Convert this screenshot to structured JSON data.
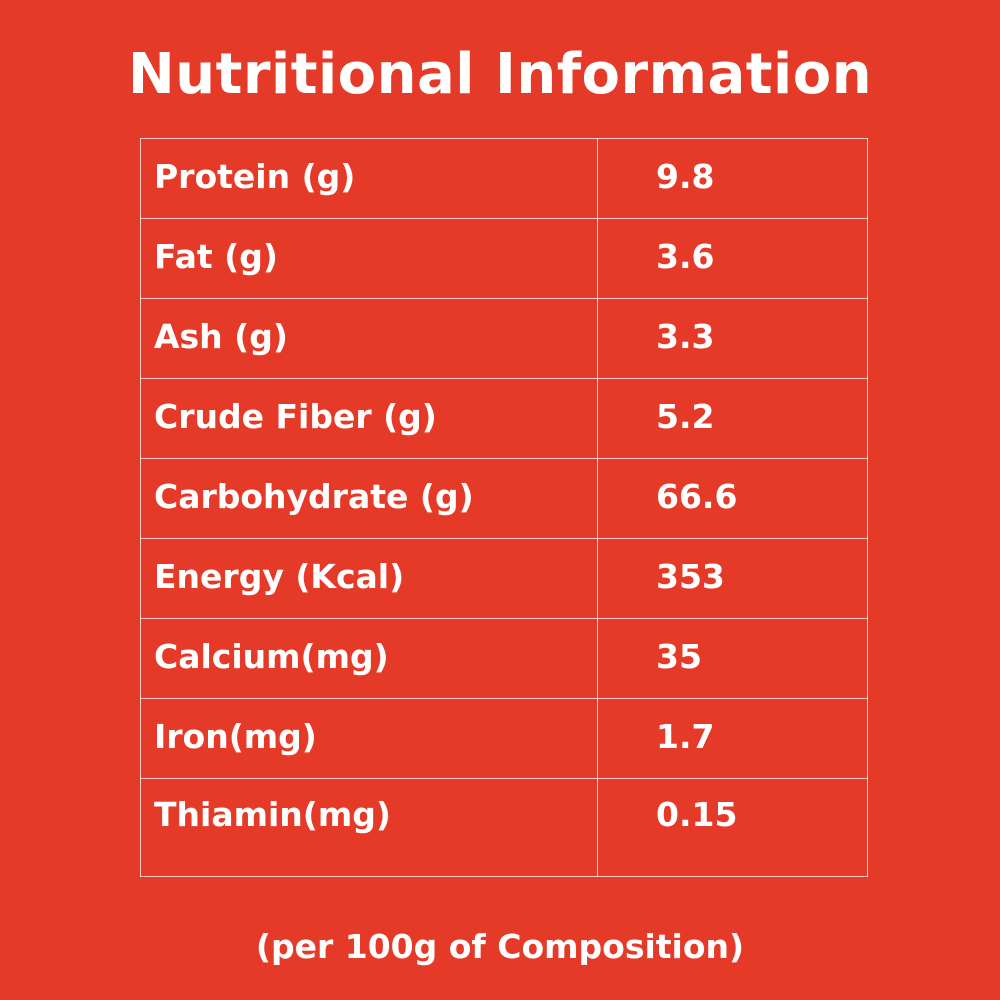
{
  "title": "Nutritional Information",
  "rows": [
    {
      "label": "Protein (g)",
      "value": "9.8"
    },
    {
      "label": "Fat (g)",
      "value": "3.6"
    },
    {
      "label": "Ash (g)",
      "value": "3.3"
    },
    {
      "label": "Crude Fiber (g)",
      "value": "5.2"
    },
    {
      "label": "Carbohydrate (g)",
      "value": "66.6"
    },
    {
      "label": "Energy (Kcal)",
      "value": "353"
    },
    {
      "label": "Calcium(mg)",
      "value": "35"
    },
    {
      "label": "Iron(mg)",
      "value": "1.7"
    },
    {
      "label": "Thiamin(mg)",
      "value": "0.15"
    }
  ],
  "footnote": "(per 100g of Composition)",
  "colors": {
    "background": "#e63a28",
    "text": "#ffffff"
  }
}
